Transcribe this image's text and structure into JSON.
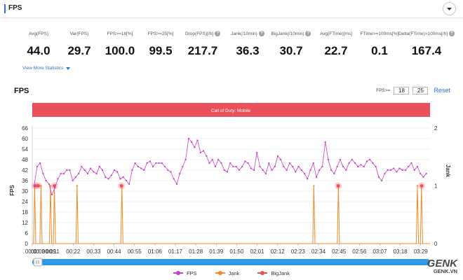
{
  "header": {
    "title": "FPS"
  },
  "stats": [
    {
      "label": "Avg(FPS)",
      "value": "44.0",
      "info": false
    },
    {
      "label": "Var(FPS)",
      "value": "29.7",
      "info": false
    },
    {
      "label": "FPS>=18[%]",
      "value": "100.0",
      "info": false
    },
    {
      "label": "FPS>=25[%]",
      "value": "99.5",
      "info": false
    },
    {
      "label": "Drop(FPS)[/h]",
      "value": "217.7",
      "info": true
    },
    {
      "label": "Jank(/10min)",
      "value": "36.3",
      "info": true
    },
    {
      "label": "BigJank(/10min)",
      "value": "30.7",
      "info": true
    },
    {
      "label": "Avg(FTime)[ms]",
      "value": "22.7",
      "info": false
    },
    {
      "label": "FTime>=100ms[%]",
      "value": "0.1",
      "info": false
    },
    {
      "label": "Delta(FTime)>100ms[/h]",
      "value": "167.4",
      "info": true
    }
  ],
  "more_stats": "View More Statistics",
  "chart": {
    "title": "FPS",
    "fps_filter_label": "FPS>=",
    "fps_filter_1": "18",
    "fps_filter_2": "25",
    "reset_label": "Reset",
    "scene_label": "Call of Duty: Mobile"
  },
  "legend": {
    "fps": "FPS",
    "jank": "Jank",
    "bigjank": "BigJank"
  },
  "watermark": {
    "brand": "GENK",
    "site": "GENK.VN"
  },
  "colors": {
    "fps": "#c83fc8",
    "jank": "#f08a2a",
    "bigjank": "#e8505b",
    "scene": "#e8505b",
    "accent": "#2f6fd1",
    "slider": "#2e9be6"
  },
  "chart_data": {
    "type": "line",
    "title": "FPS",
    "x_tick_labels": [
      "00:00",
      "00:11",
      "00:22",
      "00:33",
      "00:44",
      "00:55",
      "01:06",
      "01:17",
      "01:28",
      "01:39",
      "01:50",
      "02:01",
      "02:12",
      "02:23",
      "02:34",
      "02:45",
      "02:56",
      "03:07",
      "03:18",
      "03:29"
    ],
    "x_extra_labels": [
      "00:03",
      "00:09"
    ],
    "x_range_seconds": [
      0,
      214
    ],
    "ylabel_left": "FPS",
    "ylabel_right": "Jank",
    "y_left_ticks": [
      0,
      6,
      12,
      18,
      24,
      30,
      36,
      42,
      48,
      54,
      60,
      66
    ],
    "y_left_range": [
      0,
      66
    ],
    "y_right_ticks": [
      0,
      1,
      2
    ],
    "y_right_range": [
      0,
      2
    ],
    "series": [
      {
        "name": "FPS",
        "values": [
          33,
          44,
          46,
          40,
          36,
          34,
          28,
          32,
          37,
          40,
          40,
          42,
          42,
          36,
          38,
          40,
          44,
          42,
          40,
          43,
          41,
          40,
          44,
          42,
          38,
          37,
          39,
          42,
          41,
          37,
          38,
          36,
          34,
          42,
          46,
          44,
          43,
          42,
          46,
          47,
          44,
          46,
          46,
          46,
          44,
          42,
          41,
          37,
          34,
          40,
          44,
          48,
          60,
          58,
          55,
          59,
          52,
          53,
          50,
          46,
          48,
          44,
          48,
          46,
          42,
          41,
          46,
          44,
          44,
          42,
          44,
          47,
          46,
          43,
          42,
          52,
          44,
          42,
          40,
          46,
          42,
          44,
          50,
          48,
          44,
          42,
          46,
          44,
          41,
          44,
          42,
          40,
          37,
          42,
          46,
          38,
          42,
          44,
          58,
          48,
          42,
          40,
          44,
          48,
          44,
          42,
          46,
          48,
          46,
          44,
          45,
          44,
          47,
          48,
          46,
          44,
          38,
          36,
          40,
          42,
          42,
          43,
          41,
          43,
          42,
          42,
          44,
          46,
          42,
          44,
          40,
          38,
          40
        ]
      },
      {
        "name": "Jank",
        "values": [
          1,
          1,
          1,
          1,
          1,
          1,
          1,
          1,
          1,
          1
        ]
      },
      {
        "name": "BigJank",
        "values": [
          1,
          1,
          1,
          1,
          1,
          1
        ]
      }
    ]
  }
}
